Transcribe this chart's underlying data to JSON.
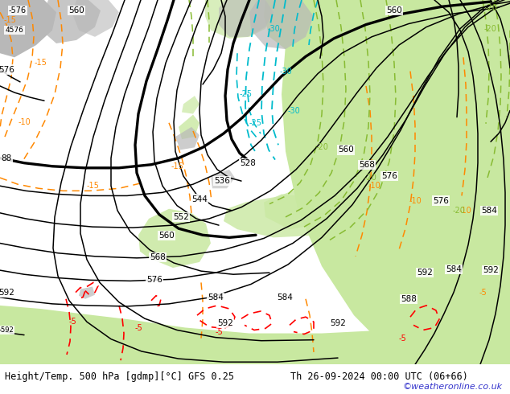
{
  "title_left": "Height/Temp. 500 hPa [gdmp][°C] GFS 0.25",
  "title_right": "Th 26-09-2024 00:00 UTC (06+66)",
  "watermark": "©weatheronline.co.uk",
  "map_bg": "#e0e0e0",
  "land_green": "#c8e8a0",
  "land_gray": "#b8b8b8",
  "bottom_bar_color": "#ffffff",
  "watermark_color": "#3333cc",
  "z500_color": "#000000",
  "temp_orange": "#ff8800",
  "temp_cyan": "#00bbcc",
  "temp_red": "#ff0000",
  "temp_green": "#88bb33",
  "figwidth": 6.34,
  "figheight": 4.9,
  "dpi": 100
}
